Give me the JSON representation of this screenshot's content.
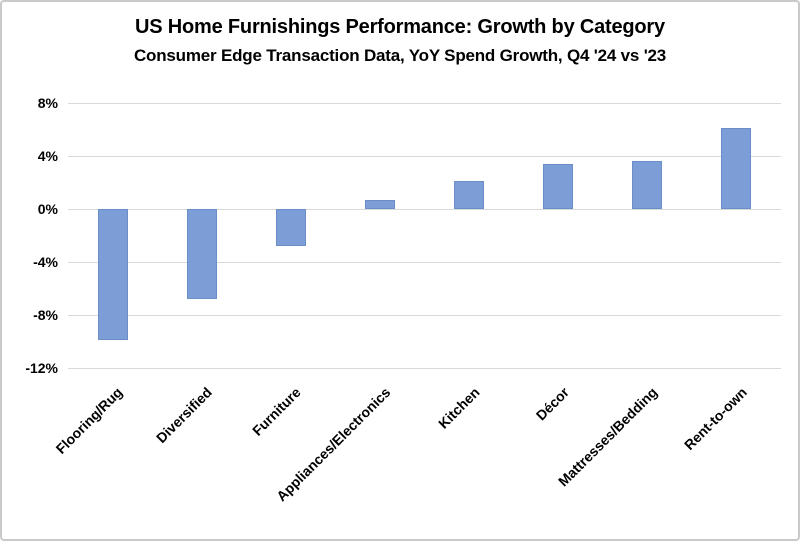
{
  "chart_data": {
    "type": "bar",
    "title": "US Home Furnishings Performance: Growth by Category",
    "subtitle": "Consumer Edge Transaction Data, YoY Spend Growth, Q4 '24 vs '23",
    "categories": [
      "Flooring/Rug",
      "Diversified",
      "Furniture",
      "Appliances/Electronics",
      "Kitchen",
      "Décor",
      "Mattresses/Bedding",
      "Rent-to-own"
    ],
    "values": [
      -9.9,
      -6.8,
      -2.8,
      0.7,
      2.1,
      3.4,
      3.6,
      6.1
    ],
    "value_unit": "%",
    "xlabel": "",
    "ylabel": "",
    "ylim": [
      -12,
      8
    ],
    "yticks": [
      {
        "value": 8,
        "label": "8%"
      },
      {
        "value": 4,
        "label": "4%"
      },
      {
        "value": 0,
        "label": "0%"
      },
      {
        "value": -4,
        "label": "-4%"
      },
      {
        "value": -8,
        "label": "-8%"
      },
      {
        "value": -12,
        "label": "-12%"
      }
    ],
    "grid": true,
    "legend_position": "none",
    "x_label_rotation_deg": 45,
    "colors": {
      "bar_fill": "#7C9DD6",
      "bar_edge": "#6A8FC8",
      "gridline": "#D9D9D9",
      "text": "#000000",
      "frame_border": "#C9C9C9",
      "background": "#FFFFFF"
    }
  }
}
